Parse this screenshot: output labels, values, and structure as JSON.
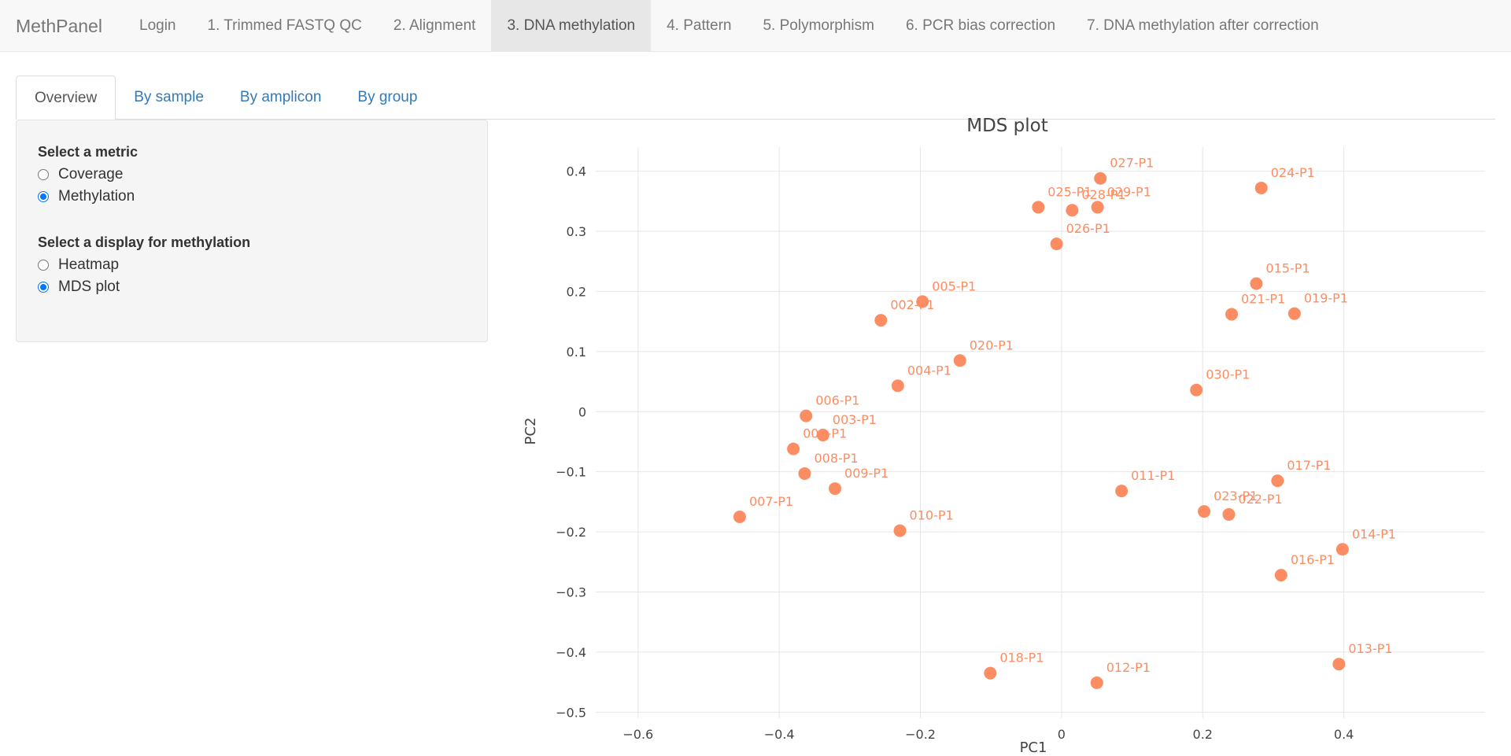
{
  "navbar": {
    "brand": "MethPanel",
    "links": [
      {
        "label": "Login",
        "active": false
      },
      {
        "label": "1. Trimmed FASTQ QC",
        "active": false
      },
      {
        "label": "2. Alignment",
        "active": false
      },
      {
        "label": "3. DNA methylation",
        "active": true
      },
      {
        "label": "4. Pattern",
        "active": false
      },
      {
        "label": "5. Polymorphism",
        "active": false
      },
      {
        "label": "6. PCR bias correction",
        "active": false
      },
      {
        "label": "7. DNA methylation after correction",
        "active": false
      }
    ]
  },
  "tabs": [
    {
      "label": "Overview",
      "active": true
    },
    {
      "label": "By sample",
      "active": false
    },
    {
      "label": "By amplicon",
      "active": false
    },
    {
      "label": "By group",
      "active": false
    }
  ],
  "sidebar": {
    "metric_label": "Select a metric",
    "metric_options": [
      {
        "label": "Coverage",
        "checked": false
      },
      {
        "label": "Methylation",
        "checked": true
      }
    ],
    "display_label": "Select a display for methylation",
    "display_options": [
      {
        "label": "Heatmap",
        "checked": false
      },
      {
        "label": "MDS plot",
        "checked": true
      }
    ]
  },
  "colors": {
    "marker": "#fc8d62",
    "active_nav_bg": "#e7e7e7",
    "link": "#337ab7"
  },
  "chart_data": {
    "type": "scatter",
    "title": "MDS plot",
    "xlabel": "PC1",
    "ylabel": "PC2",
    "xlim": [
      -0.66,
      0.6
    ],
    "ylim": [
      -0.51,
      0.44
    ],
    "xticks": [
      -0.6,
      -0.4,
      -0.2,
      0,
      0.2,
      0.4
    ],
    "xtick_labels": [
      "−0.6",
      "−0.4",
      "−0.2",
      "0",
      "0.2",
      "0.4"
    ],
    "yticks": [
      0.4,
      0.3,
      0.2,
      0.1,
      0,
      -0.1,
      -0.2,
      -0.3,
      -0.4,
      -0.5
    ],
    "ytick_labels": [
      "0.4",
      "0.3",
      "0.2",
      "0.1",
      "0",
      "−0.1",
      "−0.2",
      "−0.3",
      "−0.4",
      "−0.5"
    ],
    "grid": true,
    "marker_color": "#fc8d62",
    "points": [
      {
        "label": "027-P1",
        "x": 0.055,
        "y": 0.388
      },
      {
        "label": "024-P1",
        "x": 0.283,
        "y": 0.372
      },
      {
        "label": "025-P1",
        "x": -0.033,
        "y": 0.34
      },
      {
        "label": "028-P1",
        "x": 0.015,
        "y": 0.335
      },
      {
        "label": "029-P1",
        "x": 0.051,
        "y": 0.34
      },
      {
        "label": "026-P1",
        "x": -0.007,
        "y": 0.279
      },
      {
        "label": "015-P1",
        "x": 0.276,
        "y": 0.213
      },
      {
        "label": "021-P1",
        "x": 0.241,
        "y": 0.162
      },
      {
        "label": "019-P1",
        "x": 0.33,
        "y": 0.163
      },
      {
        "label": "005-P1",
        "x": -0.197,
        "y": 0.183
      },
      {
        "label": "002-P1",
        "x": -0.256,
        "y": 0.152
      },
      {
        "label": "020-P1",
        "x": -0.144,
        "y": 0.085
      },
      {
        "label": "004-P1",
        "x": -0.232,
        "y": 0.043
      },
      {
        "label": "030-P1",
        "x": 0.191,
        "y": 0.036
      },
      {
        "label": "006-P1",
        "x": -0.362,
        "y": -0.007
      },
      {
        "label": "003-P1",
        "x": -0.338,
        "y": -0.039
      },
      {
        "label": "001-P1",
        "x": -0.38,
        "y": -0.062
      },
      {
        "label": "008-P1",
        "x": -0.364,
        "y": -0.103
      },
      {
        "label": "009-P1",
        "x": -0.321,
        "y": -0.128
      },
      {
        "label": "011-P1",
        "x": 0.085,
        "y": -0.132
      },
      {
        "label": "017-P1",
        "x": 0.306,
        "y": -0.115
      },
      {
        "label": "023-P1",
        "x": 0.202,
        "y": -0.166
      },
      {
        "label": "022-P1",
        "x": 0.237,
        "y": -0.171
      },
      {
        "label": "007-P1",
        "x": -0.456,
        "y": -0.175
      },
      {
        "label": "010-P1",
        "x": -0.229,
        "y": -0.198
      },
      {
        "label": "014-P1",
        "x": 0.398,
        "y": -0.229
      },
      {
        "label": "016-P1",
        "x": 0.311,
        "y": -0.272
      },
      {
        "label": "013-P1",
        "x": 0.393,
        "y": -0.42
      },
      {
        "label": "018-P1",
        "x": -0.101,
        "y": -0.435
      },
      {
        "label": "012-P1",
        "x": 0.05,
        "y": -0.451
      }
    ]
  }
}
